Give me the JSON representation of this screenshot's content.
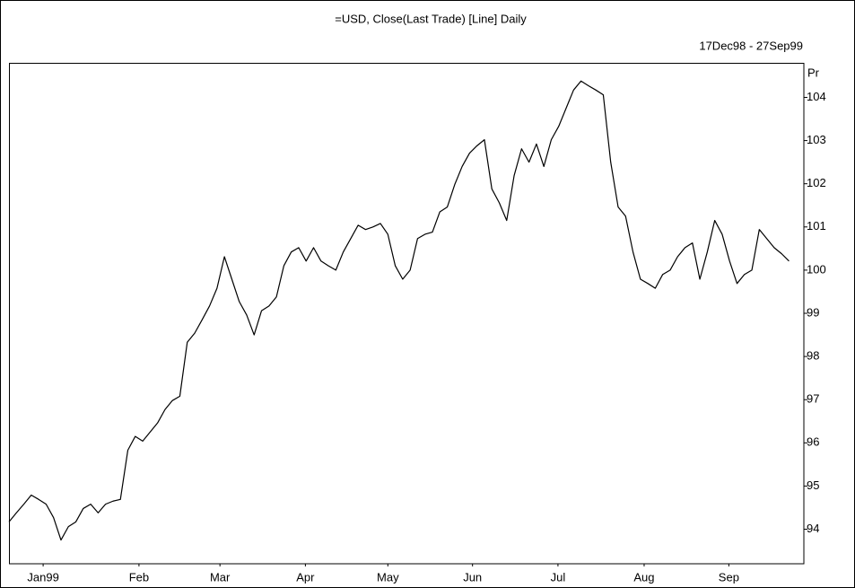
{
  "chart_data": {
    "type": "line",
    "title": "=USD, Close(Last Trade) [Line] Daily",
    "subtitle": "17Dec98 - 27Sep99",
    "y_label": "Pr",
    "color": "#000000",
    "grid": false,
    "xlim": [
      0,
      107
    ],
    "xticks": [
      {
        "value": 4.6,
        "label": "Jan99"
      },
      {
        "value": 17.5,
        "label": "Feb"
      },
      {
        "value": 28.4,
        "label": "Mar"
      },
      {
        "value": 39.9,
        "label": "Apr"
      },
      {
        "value": 51.0,
        "label": "May"
      },
      {
        "value": 62.4,
        "label": "Jun"
      },
      {
        "value": 73.9,
        "label": "Jul"
      },
      {
        "value": 85.5,
        "label": "Aug"
      },
      {
        "value": 96.9,
        "label": "Sep"
      }
    ],
    "ylim": [
      93.2,
      104.8
    ],
    "yticks": [
      94,
      95,
      96,
      97,
      98,
      99,
      100,
      101,
      102,
      103,
      104
    ],
    "values": [
      94.17,
      94.38,
      94.58,
      94.79,
      94.69,
      94.58,
      94.27,
      93.75,
      94.06,
      94.17,
      94.48,
      94.58,
      94.38,
      94.58,
      94.65,
      94.69,
      95.83,
      96.15,
      96.04,
      96.25,
      96.46,
      96.77,
      96.98,
      97.08,
      98.33,
      98.54,
      98.85,
      99.17,
      99.58,
      100.31,
      99.79,
      99.27,
      98.96,
      98.5,
      99.06,
      99.17,
      99.38,
      100.1,
      100.42,
      100.52,
      100.21,
      100.52,
      100.21,
      100.1,
      100.0,
      100.42,
      100.73,
      101.04,
      100.94,
      101.0,
      101.08,
      100.83,
      100.1,
      99.79,
      100.0,
      100.73,
      100.83,
      100.88,
      101.35,
      101.46,
      101.98,
      102.4,
      102.71,
      102.88,
      103.02,
      101.88,
      101.56,
      101.15,
      102.19,
      102.81,
      102.5,
      102.92,
      102.4,
      103.02,
      103.33,
      103.75,
      104.17,
      104.38,
      104.27,
      104.17,
      104.06,
      102.5,
      101.46,
      101.25,
      100.42,
      99.79,
      99.69,
      99.58,
      99.9,
      100.0,
      100.31,
      100.52,
      100.63,
      99.79,
      100.42,
      101.15,
      100.83,
      100.21,
      99.69,
      99.9,
      100.0,
      100.94,
      100.73,
      100.52,
      100.38,
      100.21
    ]
  }
}
